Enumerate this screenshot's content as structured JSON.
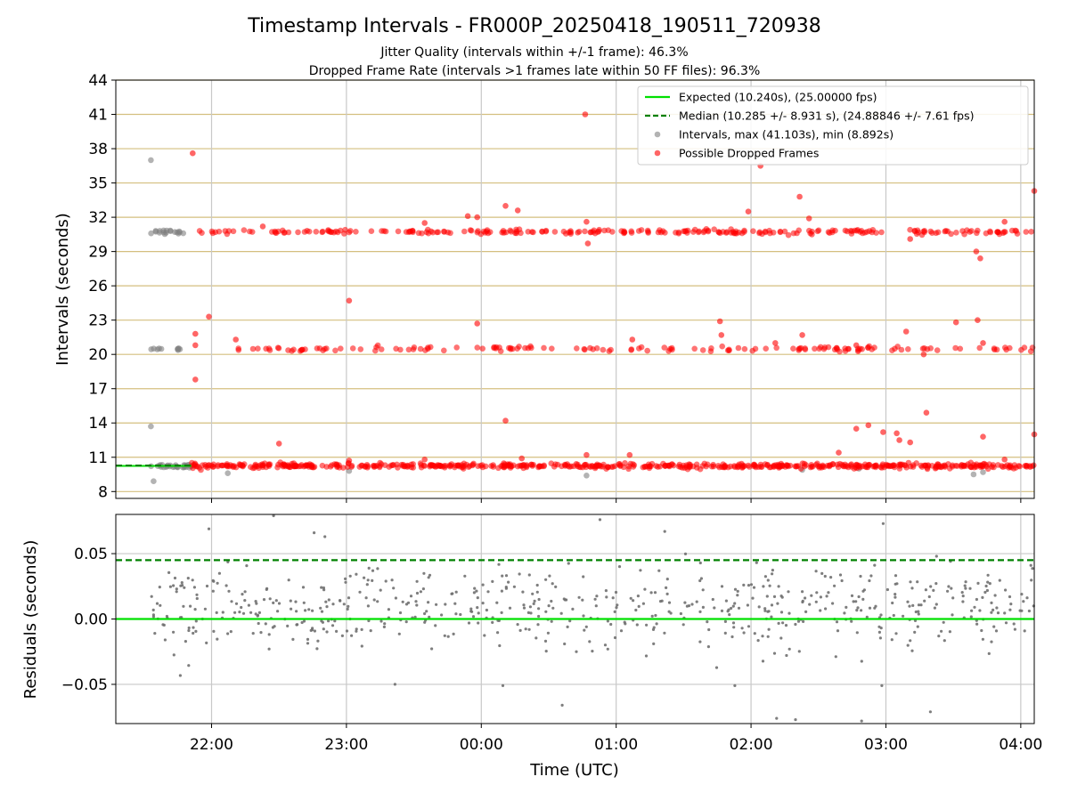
{
  "chart_data": [
    {
      "type": "scatter",
      "title": "Timestamp Intervals - FR000P_20250418_190511_720938",
      "subtitles": [
        "Jitter Quality (intervals within +/-1 frame): 46.3%",
        "Dropped Frame Rate (intervals >1 frames late within 50 FF files): 96.3%"
      ],
      "xlabel": "",
      "ylabel": "Intervals (seconds)",
      "xlim_hours": [
        21.29,
        28.1
      ],
      "ylim": [
        7.4,
        44
      ],
      "yticks": [
        8,
        11,
        14,
        17,
        20,
        23,
        26,
        29,
        32,
        35,
        38,
        41,
        44
      ],
      "xticks": [
        22,
        23,
        24,
        25,
        26,
        27,
        28
      ],
      "grid": true,
      "legend_position": "top-right",
      "expected_interval": 10.24,
      "median_interval": 10.285,
      "legend": [
        {
          "label": "Expected (10.240s), (25.00000 fps)",
          "style": "solid-line",
          "color": "#00e000"
        },
        {
          "label": "Median (10.285 +/- 8.931 s), (24.88846 +/- 7.61 fps)",
          "style": "dashed-line",
          "color": "#008000"
        },
        {
          "label": "Intervals, max (41.103s), min (8.892s)",
          "style": "dot",
          "color": "#808080"
        },
        {
          "label": "Possible Dropped Frames",
          "style": "dot",
          "color": "#ff0000"
        }
      ],
      "series": [
        {
          "name": "Intervals, max (41.103s), min (8.892s)",
          "color": "#808080",
          "bands": [
            {
              "y": 10.24,
              "x_range": [
                21.55,
                21.85
              ],
              "count": 30
            },
            {
              "y": 20.48,
              "x_range": [
                21.55,
                21.8
              ],
              "count": 10
            },
            {
              "y": 30.72,
              "x_range": [
                21.55,
                21.85
              ],
              "count": 18
            }
          ],
          "points": [
            [
              21.55,
              37.0
            ],
            [
              21.55,
              13.7
            ],
            [
              21.57,
              8.9
            ],
            [
              22.12,
              9.6
            ],
            [
              23.02,
              9.8
            ],
            [
              24.78,
              9.4
            ],
            [
              26.38,
              9.9
            ],
            [
              26.8,
              10.0
            ],
            [
              27.65,
              9.5
            ],
            [
              27.72,
              9.7
            ]
          ]
        },
        {
          "name": "Possible Dropped Frames",
          "color": "#ff0000",
          "bands": [
            {
              "y": 10.24,
              "x_range": [
                21.85,
                28.1
              ],
              "count": 600
            },
            {
              "y": 20.48,
              "x_range": [
                22.15,
                28.1
              ],
              "count": 150
            },
            {
              "y": 30.72,
              "x_range": [
                21.9,
                28.1
              ],
              "count": 260
            }
          ],
          "points": [
            [
              21.86,
              37.6
            ],
            [
              21.88,
              21.8
            ],
            [
              21.88,
              20.8
            ],
            [
              21.88,
              17.8
            ],
            [
              21.98,
              23.3
            ],
            [
              22.5,
              12.2
            ],
            [
              23.02,
              24.7
            ],
            [
              22.18,
              21.3
            ],
            [
              22.38,
              31.2
            ],
            [
              23.58,
              31.5
            ],
            [
              23.9,
              32.1
            ],
            [
              23.97,
              32.0
            ],
            [
              24.18,
              33.0
            ],
            [
              24.27,
              32.6
            ],
            [
              24.77,
              41.0
            ],
            [
              24.78,
              31.6
            ],
            [
              24.79,
              29.7
            ],
            [
              25.98,
              32.5
            ],
            [
              26.07,
              36.5
            ],
            [
              26.36,
              33.8
            ],
            [
              26.43,
              31.9
            ],
            [
              27.18,
              30.1
            ],
            [
              27.67,
              29.0
            ],
            [
              27.7,
              28.4
            ],
            [
              27.88,
              31.6
            ],
            [
              28.1,
              34.3
            ],
            [
              23.97,
              22.7
            ],
            [
              25.77,
              22.9
            ],
            [
              25.78,
              21.7
            ],
            [
              26.18,
              21.0
            ],
            [
              26.38,
              21.7
            ],
            [
              26.78,
              20.8
            ],
            [
              27.15,
              22.0
            ],
            [
              27.28,
              20.0
            ],
            [
              27.52,
              22.8
            ],
            [
              27.68,
              23.0
            ],
            [
              27.72,
              21.0
            ],
            [
              25.12,
              21.3
            ],
            [
              24.18,
              14.2
            ],
            [
              26.78,
              13.5
            ],
            [
              26.87,
              13.8
            ],
            [
              26.98,
              13.2
            ],
            [
              27.08,
              13.1
            ],
            [
              27.1,
              12.5
            ],
            [
              27.18,
              12.3
            ],
            [
              27.3,
              14.9
            ],
            [
              27.72,
              12.8
            ],
            [
              28.1,
              13.0
            ],
            [
              26.65,
              11.4
            ],
            [
              25.1,
              11.2
            ],
            [
              24.78,
              11.2
            ],
            [
              24.3,
              10.9
            ],
            [
              23.58,
              10.8
            ],
            [
              23.02,
              10.7
            ],
            [
              27.88,
              10.8
            ]
          ]
        }
      ]
    },
    {
      "type": "scatter",
      "title": "",
      "xlabel": "Time (UTC)",
      "ylabel": "Residuals (seconds)",
      "xlim_hours": [
        21.29,
        28.1
      ],
      "ylim": [
        -0.08,
        0.08
      ],
      "yticks": [
        -0.05,
        0.0,
        0.05
      ],
      "ytick_labels": [
        "−0.05",
        "0.00",
        "0.05"
      ],
      "xticks": [
        22,
        23,
        24,
        25,
        26,
        27,
        28
      ],
      "xtick_labels": [
        "22:00",
        "23:00",
        "00:00",
        "01:00",
        "02:00",
        "03:00",
        "04:00"
      ],
      "grid": true,
      "expected_residual": 0.0,
      "median_residual": 0.045,
      "series": [
        {
          "name": "residuals",
          "color": "#707070",
          "x_range": [
            21.55,
            28.1
          ],
          "count": 620,
          "center": 0.008,
          "spread": 0.022,
          "outliers": [
            [
              22.46,
              0.079
            ],
            [
              21.98,
              0.069
            ],
            [
              22.76,
              0.066
            ],
            [
              22.84,
              0.063
            ],
            [
              26.98,
              0.073
            ],
            [
              25.36,
              0.067
            ],
            [
              24.88,
              0.076
            ],
            [
              26.19,
              -0.076
            ],
            [
              26.33,
              -0.077
            ],
            [
              26.82,
              -0.078
            ],
            [
              27.33,
              -0.071
            ],
            [
              24.6,
              -0.066
            ],
            [
              23.36,
              -0.05
            ],
            [
              24.16,
              -0.051
            ],
            [
              26.97,
              -0.051
            ],
            [
              25.88,
              -0.051
            ]
          ]
        }
      ]
    }
  ]
}
